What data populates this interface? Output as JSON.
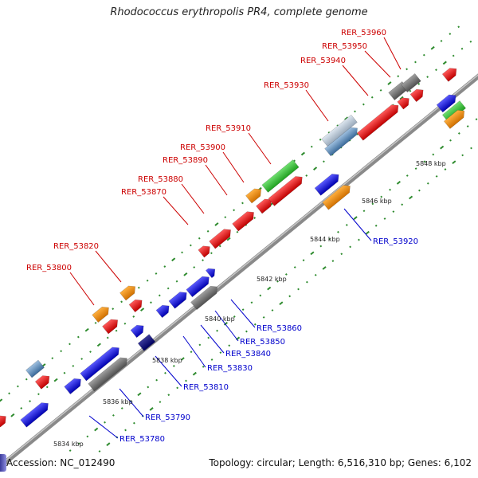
{
  "title": "Rhodococcus erythropolis PR4, complete genome",
  "footer": {
    "accession": "Accession: NC_012490",
    "summary": "Topology: circular; Length: 6,516,310 bp; Genes: 6,102"
  },
  "colors": {
    "backbone": "#8a8a8a",
    "tick": "#2e8b2e",
    "label_top": "#cc0000",
    "label_bottom": "#0000cc"
  },
  "kbp_labels": [
    "5834 kbp",
    "5836 kbp",
    "5838 kbp",
    "5840 kbp",
    "5842 kbp",
    "5844 kbp",
    "5846 kbp",
    "5848 kbp"
  ],
  "gene_labels_top": [
    "RER_53800",
    "RER_53820",
    "RER_53870",
    "RER_53880",
    "RER_53890",
    "RER_53900",
    "RER_53910",
    "RER_53930",
    "RER_53940",
    "RER_53950",
    "RER_53960"
  ],
  "gene_labels_bottom": [
    "RER_53780",
    "RER_53790",
    "RER_53810",
    "RER_53830",
    "RER_53840",
    "RER_53850",
    "RER_53860",
    "RER_53920"
  ]
}
